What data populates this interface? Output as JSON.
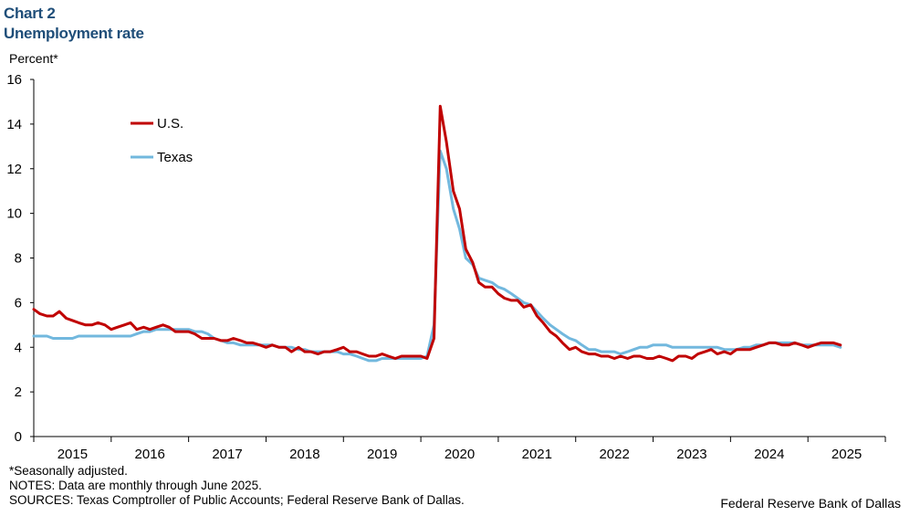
{
  "header": {
    "chart_number": "Chart 2",
    "title": "Unemployment rate"
  },
  "notes": {
    "line1": "*Seasonally adjusted.",
    "line2": "NOTES: Data are monthly through June 2025.",
    "line3": "SOURCES: Texas Comptroller of Public Accounts; Federal Reserve Bank of Dallas."
  },
  "credit": "Federal Reserve Bank of Dallas",
  "chart_data": {
    "type": "line",
    "ylabel": "Percent*",
    "ylim": [
      0,
      16
    ],
    "yticks": [
      0,
      2,
      4,
      6,
      8,
      10,
      12,
      14,
      16
    ],
    "xlim": [
      2015.0,
      2026.0
    ],
    "xtick_labels": [
      "2015",
      "2016",
      "2017",
      "2018",
      "2019",
      "2020",
      "2021",
      "2022",
      "2023",
      "2024",
      "2025"
    ],
    "legend_position": "top-left",
    "grid": false,
    "series": [
      {
        "name": "U.S.",
        "color": "#c00000",
        "points": [
          [
            2015.0,
            5.7
          ],
          [
            2015.08,
            5.5
          ],
          [
            2015.17,
            5.4
          ],
          [
            2015.25,
            5.4
          ],
          [
            2015.33,
            5.6
          ],
          [
            2015.42,
            5.3
          ],
          [
            2015.5,
            5.2
          ],
          [
            2015.58,
            5.1
          ],
          [
            2015.67,
            5.0
          ],
          [
            2015.75,
            5.0
          ],
          [
            2015.83,
            5.1
          ],
          [
            2015.92,
            5.0
          ],
          [
            2016.0,
            4.8
          ],
          [
            2016.08,
            4.9
          ],
          [
            2016.17,
            5.0
          ],
          [
            2016.25,
            5.1
          ],
          [
            2016.33,
            4.8
          ],
          [
            2016.42,
            4.9
          ],
          [
            2016.5,
            4.8
          ],
          [
            2016.58,
            4.9
          ],
          [
            2016.67,
            5.0
          ],
          [
            2016.75,
            4.9
          ],
          [
            2016.83,
            4.7
          ],
          [
            2016.92,
            4.7
          ],
          [
            2017.0,
            4.7
          ],
          [
            2017.08,
            4.6
          ],
          [
            2017.17,
            4.4
          ],
          [
            2017.25,
            4.4
          ],
          [
            2017.33,
            4.4
          ],
          [
            2017.42,
            4.3
          ],
          [
            2017.5,
            4.3
          ],
          [
            2017.58,
            4.4
          ],
          [
            2017.67,
            4.3
          ],
          [
            2017.75,
            4.2
          ],
          [
            2017.83,
            4.2
          ],
          [
            2017.92,
            4.1
          ],
          [
            2018.0,
            4.0
          ],
          [
            2018.08,
            4.1
          ],
          [
            2018.17,
            4.0
          ],
          [
            2018.25,
            4.0
          ],
          [
            2018.33,
            3.8
          ],
          [
            2018.42,
            4.0
          ],
          [
            2018.5,
            3.8
          ],
          [
            2018.58,
            3.8
          ],
          [
            2018.67,
            3.7
          ],
          [
            2018.75,
            3.8
          ],
          [
            2018.83,
            3.8
          ],
          [
            2018.92,
            3.9
          ],
          [
            2019.0,
            4.0
          ],
          [
            2019.08,
            3.8
          ],
          [
            2019.17,
            3.8
          ],
          [
            2019.25,
            3.7
          ],
          [
            2019.33,
            3.6
          ],
          [
            2019.42,
            3.6
          ],
          [
            2019.5,
            3.7
          ],
          [
            2019.58,
            3.6
          ],
          [
            2019.67,
            3.5
          ],
          [
            2019.75,
            3.6
          ],
          [
            2019.83,
            3.6
          ],
          [
            2019.92,
            3.6
          ],
          [
            2020.0,
            3.6
          ],
          [
            2020.08,
            3.5
          ],
          [
            2020.17,
            4.4
          ],
          [
            2020.25,
            14.8
          ],
          [
            2020.33,
            13.2
          ],
          [
            2020.42,
            11.0
          ],
          [
            2020.5,
            10.2
          ],
          [
            2020.58,
            8.4
          ],
          [
            2020.67,
            7.8
          ],
          [
            2020.75,
            6.9
          ],
          [
            2020.83,
            6.7
          ],
          [
            2020.92,
            6.7
          ],
          [
            2021.0,
            6.4
          ],
          [
            2021.08,
            6.2
          ],
          [
            2021.17,
            6.1
          ],
          [
            2021.25,
            6.1
          ],
          [
            2021.33,
            5.8
          ],
          [
            2021.42,
            5.9
          ],
          [
            2021.5,
            5.4
          ],
          [
            2021.58,
            5.1
          ],
          [
            2021.67,
            4.7
          ],
          [
            2021.75,
            4.5
          ],
          [
            2021.83,
            4.2
          ],
          [
            2021.92,
            3.9
          ],
          [
            2022.0,
            4.0
          ],
          [
            2022.08,
            3.8
          ],
          [
            2022.17,
            3.7
          ],
          [
            2022.25,
            3.7
          ],
          [
            2022.33,
            3.6
          ],
          [
            2022.42,
            3.6
          ],
          [
            2022.5,
            3.5
          ],
          [
            2022.58,
            3.6
          ],
          [
            2022.67,
            3.5
          ],
          [
            2022.75,
            3.6
          ],
          [
            2022.83,
            3.6
          ],
          [
            2022.92,
            3.5
          ],
          [
            2023.0,
            3.5
          ],
          [
            2023.08,
            3.6
          ],
          [
            2023.17,
            3.5
          ],
          [
            2023.25,
            3.4
          ],
          [
            2023.33,
            3.6
          ],
          [
            2023.42,
            3.6
          ],
          [
            2023.5,
            3.5
          ],
          [
            2023.58,
            3.7
          ],
          [
            2023.67,
            3.8
          ],
          [
            2023.75,
            3.9
          ],
          [
            2023.83,
            3.7
          ],
          [
            2023.92,
            3.8
          ],
          [
            2024.0,
            3.7
          ],
          [
            2024.08,
            3.9
          ],
          [
            2024.17,
            3.9
          ],
          [
            2024.25,
            3.9
          ],
          [
            2024.33,
            4.0
          ],
          [
            2024.42,
            4.1
          ],
          [
            2024.5,
            4.2
          ],
          [
            2024.58,
            4.2
          ],
          [
            2024.67,
            4.1
          ],
          [
            2024.75,
            4.1
          ],
          [
            2024.83,
            4.2
          ],
          [
            2024.92,
            4.1
          ],
          [
            2025.0,
            4.0
          ],
          [
            2025.08,
            4.1
          ],
          [
            2025.17,
            4.2
          ],
          [
            2025.25,
            4.2
          ],
          [
            2025.33,
            4.2
          ],
          [
            2025.42,
            4.1
          ]
        ]
      },
      {
        "name": "Texas",
        "color": "#72b8de",
        "points": [
          [
            2015.0,
            4.5
          ],
          [
            2015.08,
            4.5
          ],
          [
            2015.17,
            4.5
          ],
          [
            2015.25,
            4.4
          ],
          [
            2015.33,
            4.4
          ],
          [
            2015.42,
            4.4
          ],
          [
            2015.5,
            4.4
          ],
          [
            2015.58,
            4.5
          ],
          [
            2015.67,
            4.5
          ],
          [
            2015.75,
            4.5
          ],
          [
            2015.83,
            4.5
          ],
          [
            2015.92,
            4.5
          ],
          [
            2016.0,
            4.5
          ],
          [
            2016.08,
            4.5
          ],
          [
            2016.17,
            4.5
          ],
          [
            2016.25,
            4.5
          ],
          [
            2016.33,
            4.6
          ],
          [
            2016.42,
            4.7
          ],
          [
            2016.5,
            4.7
          ],
          [
            2016.58,
            4.8
          ],
          [
            2016.67,
            4.8
          ],
          [
            2016.75,
            4.8
          ],
          [
            2016.83,
            4.8
          ],
          [
            2016.92,
            4.8
          ],
          [
            2017.0,
            4.8
          ],
          [
            2017.08,
            4.7
          ],
          [
            2017.17,
            4.7
          ],
          [
            2017.25,
            4.6
          ],
          [
            2017.33,
            4.4
          ],
          [
            2017.42,
            4.3
          ],
          [
            2017.5,
            4.2
          ],
          [
            2017.58,
            4.2
          ],
          [
            2017.67,
            4.1
          ],
          [
            2017.75,
            4.1
          ],
          [
            2017.83,
            4.1
          ],
          [
            2017.92,
            4.1
          ],
          [
            2018.0,
            4.1
          ],
          [
            2018.08,
            4.1
          ],
          [
            2018.17,
            4.0
          ],
          [
            2018.25,
            4.0
          ],
          [
            2018.33,
            4.0
          ],
          [
            2018.42,
            3.9
          ],
          [
            2018.5,
            3.9
          ],
          [
            2018.58,
            3.8
          ],
          [
            2018.67,
            3.8
          ],
          [
            2018.75,
            3.8
          ],
          [
            2018.83,
            3.8
          ],
          [
            2018.92,
            3.8
          ],
          [
            2019.0,
            3.7
          ],
          [
            2019.08,
            3.7
          ],
          [
            2019.17,
            3.6
          ],
          [
            2019.25,
            3.5
          ],
          [
            2019.33,
            3.4
          ],
          [
            2019.42,
            3.4
          ],
          [
            2019.5,
            3.5
          ],
          [
            2019.58,
            3.5
          ],
          [
            2019.67,
            3.5
          ],
          [
            2019.75,
            3.5
          ],
          [
            2019.83,
            3.5
          ],
          [
            2019.92,
            3.5
          ],
          [
            2020.0,
            3.5
          ],
          [
            2020.08,
            3.6
          ],
          [
            2020.17,
            5.0
          ],
          [
            2020.25,
            12.8
          ],
          [
            2020.33,
            12.0
          ],
          [
            2020.42,
            10.2
          ],
          [
            2020.5,
            9.3
          ],
          [
            2020.58,
            8.0
          ],
          [
            2020.67,
            7.7
          ],
          [
            2020.75,
            7.1
          ],
          [
            2020.83,
            7.0
          ],
          [
            2020.92,
            6.9
          ],
          [
            2021.0,
            6.7
          ],
          [
            2021.08,
            6.6
          ],
          [
            2021.17,
            6.4
          ],
          [
            2021.25,
            6.2
          ],
          [
            2021.33,
            6.0
          ],
          [
            2021.42,
            5.9
          ],
          [
            2021.5,
            5.6
          ],
          [
            2021.58,
            5.3
          ],
          [
            2021.67,
            5.0
          ],
          [
            2021.75,
            4.8
          ],
          [
            2021.83,
            4.6
          ],
          [
            2021.92,
            4.4
          ],
          [
            2022.0,
            4.3
          ],
          [
            2022.08,
            4.1
          ],
          [
            2022.17,
            3.9
          ],
          [
            2022.25,
            3.9
          ],
          [
            2022.33,
            3.8
          ],
          [
            2022.42,
            3.8
          ],
          [
            2022.5,
            3.8
          ],
          [
            2022.58,
            3.7
          ],
          [
            2022.67,
            3.8
          ],
          [
            2022.75,
            3.9
          ],
          [
            2022.83,
            4.0
          ],
          [
            2022.92,
            4.0
          ],
          [
            2023.0,
            4.1
          ],
          [
            2023.08,
            4.1
          ],
          [
            2023.17,
            4.1
          ],
          [
            2023.25,
            4.0
          ],
          [
            2023.33,
            4.0
          ],
          [
            2023.42,
            4.0
          ],
          [
            2023.5,
            4.0
          ],
          [
            2023.58,
            4.0
          ],
          [
            2023.67,
            4.0
          ],
          [
            2023.75,
            4.0
          ],
          [
            2023.83,
            4.0
          ],
          [
            2023.92,
            3.9
          ],
          [
            2024.0,
            3.9
          ],
          [
            2024.08,
            3.9
          ],
          [
            2024.17,
            4.0
          ],
          [
            2024.25,
            4.0
          ],
          [
            2024.33,
            4.1
          ],
          [
            2024.42,
            4.1
          ],
          [
            2024.5,
            4.2
          ],
          [
            2024.58,
            4.2
          ],
          [
            2024.67,
            4.2
          ],
          [
            2024.75,
            4.2
          ],
          [
            2024.83,
            4.2
          ],
          [
            2024.92,
            4.1
          ],
          [
            2025.0,
            4.1
          ],
          [
            2025.08,
            4.1
          ],
          [
            2025.17,
            4.1
          ],
          [
            2025.25,
            4.1
          ],
          [
            2025.33,
            4.1
          ],
          [
            2025.42,
            4.0
          ]
        ]
      }
    ]
  }
}
